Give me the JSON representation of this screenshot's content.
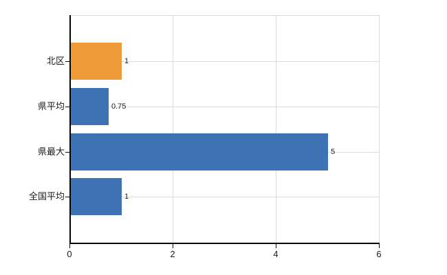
{
  "chart_data": {
    "type": "bar",
    "orientation": "horizontal",
    "title": "",
    "xlabel": "",
    "ylabel": "",
    "categories": [
      "北区",
      "県平均",
      "県最大",
      "全国平均"
    ],
    "values": [
      1,
      0.75,
      5,
      1
    ],
    "value_labels": [
      "1",
      "0.75",
      "5",
      "1"
    ],
    "bar_colors": [
      "#ee9b39",
      "#3d72b4",
      "#3d72b4",
      "#3d72b4"
    ],
    "xlim": [
      0,
      6
    ],
    "x_ticks": [
      0,
      2,
      4,
      6
    ],
    "x_tick_labels": [
      "0",
      "2",
      "4",
      "6"
    ],
    "grid": true,
    "legend_position": "none"
  },
  "colors": {
    "highlight_orange": "#ee9b39",
    "series_blue": "#3d72b4",
    "gridline": "#d9ddd9",
    "axis": "#000000",
    "background": "#ffffff"
  }
}
